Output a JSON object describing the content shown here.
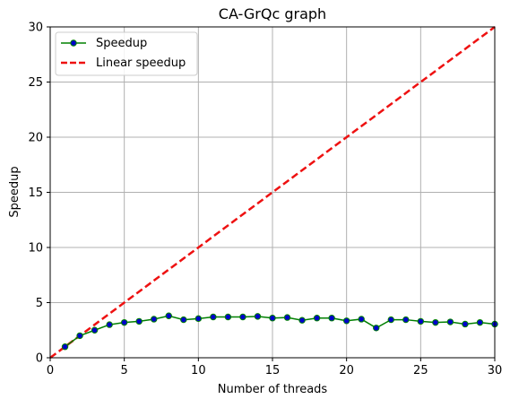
{
  "chart_data": {
    "type": "line",
    "title": "CA-GrQc graph",
    "xlabel": "Number of threads",
    "ylabel": "Speedup",
    "xlim": [
      0,
      30
    ],
    "ylim": [
      0,
      30
    ],
    "xticks": [
      "0",
      "5",
      "10",
      "15",
      "20",
      "25",
      "30"
    ],
    "yticks": [
      "0",
      "5",
      "10",
      "15",
      "20",
      "25",
      "30"
    ],
    "grid": true,
    "legend_position": "top-left",
    "series": [
      {
        "name": "Speedup",
        "style": "solid line with circle markers",
        "line_color": "#008000",
        "marker_color": "#0000cc",
        "x": [
          1,
          2,
          3,
          4,
          5,
          6,
          7,
          8,
          9,
          10,
          11,
          12,
          13,
          14,
          15,
          16,
          17,
          18,
          19,
          20,
          21,
          22,
          23,
          24,
          25,
          26,
          27,
          28,
          29,
          30
        ],
        "y": [
          1.0,
          2.0,
          2.5,
          3.0,
          3.2,
          3.3,
          3.5,
          3.8,
          3.45,
          3.55,
          3.7,
          3.7,
          3.7,
          3.75,
          3.6,
          3.65,
          3.4,
          3.6,
          3.6,
          3.35,
          3.5,
          2.7,
          3.45,
          3.45,
          3.3,
          3.2,
          3.25,
          3.05,
          3.2,
          3.05
        ]
      },
      {
        "name": "Linear speedup",
        "style": "dashed line",
        "line_color": "#ee1111",
        "x": [
          0,
          30
        ],
        "y": [
          0,
          30
        ]
      }
    ]
  }
}
